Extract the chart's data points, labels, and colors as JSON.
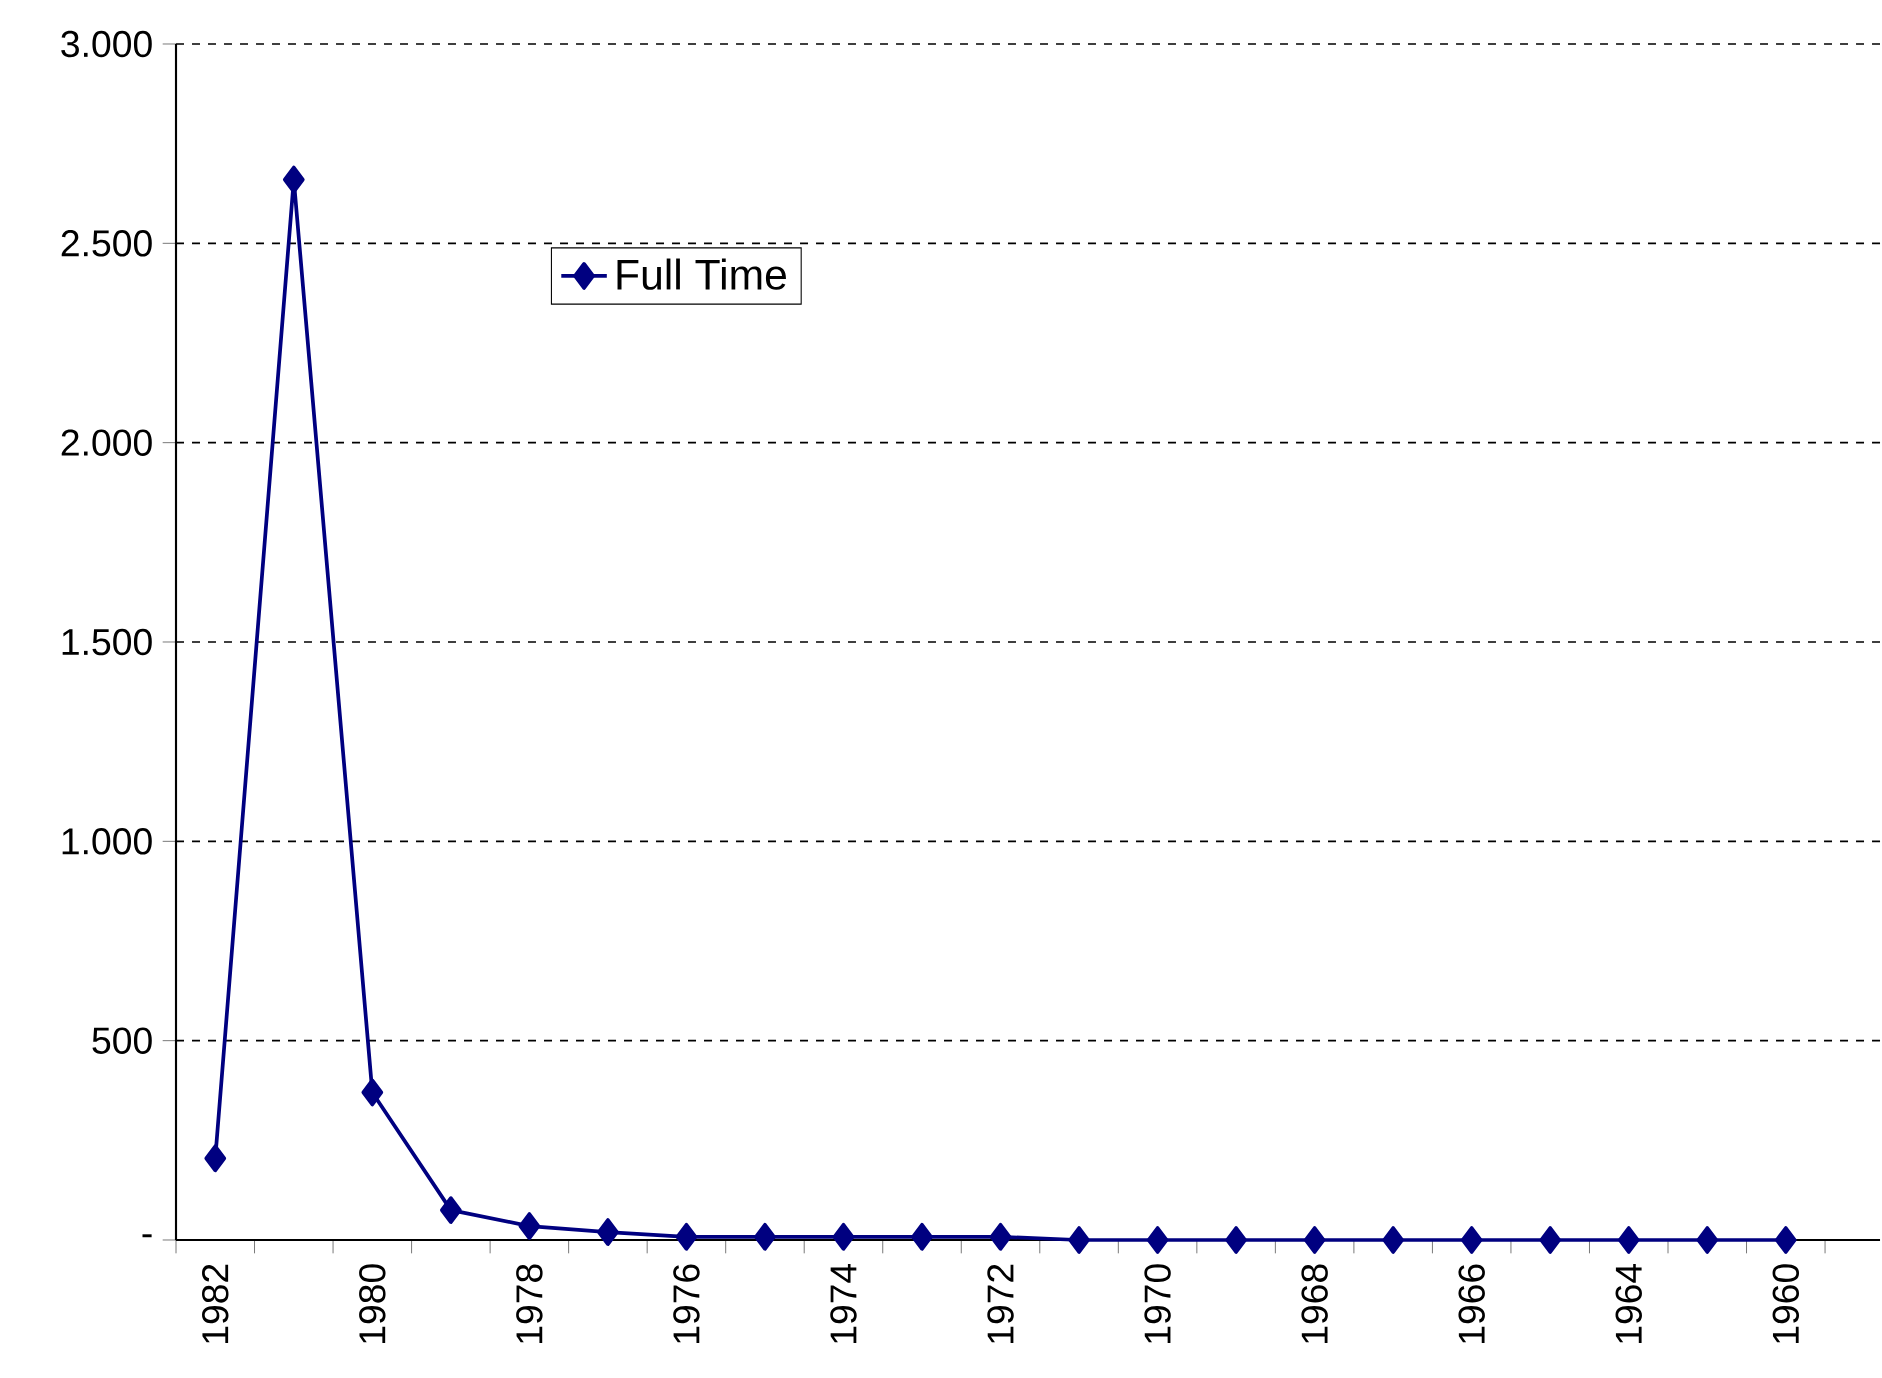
{
  "chart_data": {
    "type": "line",
    "categories": [
      "1982",
      null,
      "1980",
      null,
      "1978",
      null,
      "1976",
      null,
      "1974",
      null,
      "1972",
      null,
      "1970",
      null,
      "1968",
      null,
      "1966",
      null,
      "1964",
      null,
      "1960"
    ],
    "series": [
      {
        "name": "Full Time",
        "color": "#000080",
        "values": [
          205,
          2660,
          370,
          75,
          35,
          20,
          8,
          8,
          8,
          8,
          8,
          0,
          0,
          0,
          0,
          0,
          0,
          0,
          0,
          0,
          0
        ]
      }
    ],
    "ylim": [
      0,
      3000
    ],
    "yticks": [
      {
        "value": 0,
        "label": "-"
      },
      {
        "value": 500,
        "label": "500"
      },
      {
        "value": 1000,
        "label": "1.000"
      },
      {
        "value": 1500,
        "label": "1.500"
      },
      {
        "value": 2000,
        "label": "2.000"
      },
      {
        "value": 2500,
        "label": "2.500"
      },
      {
        "value": 3000,
        "label": "3.000"
      }
    ],
    "grid": "y",
    "legend": "top",
    "marker": "diamond",
    "line_style": "solid"
  }
}
